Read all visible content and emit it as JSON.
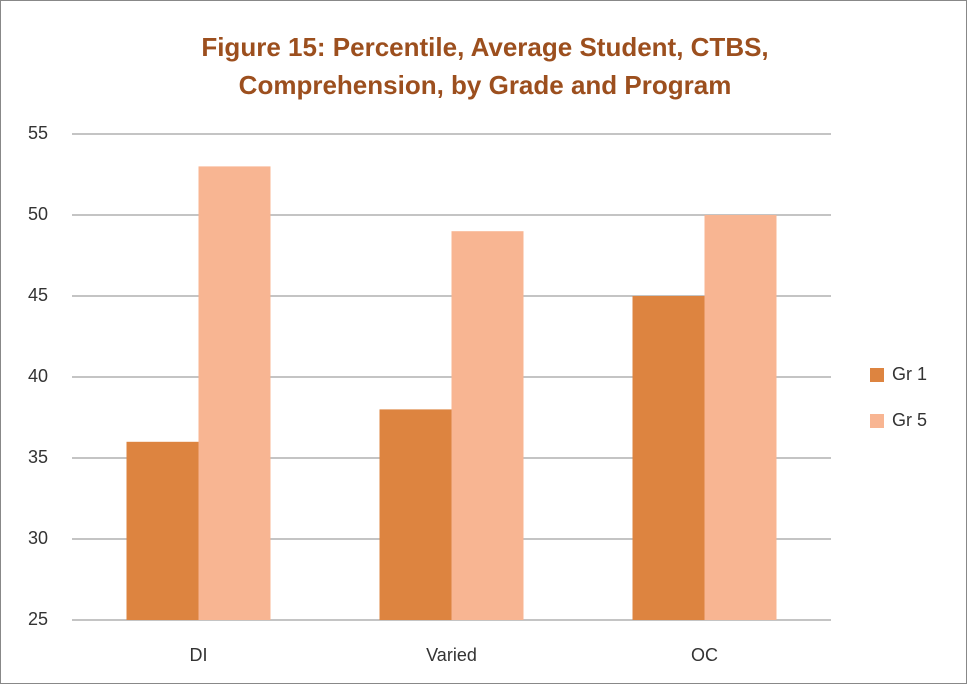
{
  "chart_data": {
    "type": "bar",
    "title": "Figure 15: Percentile, Average Student, CTBS, Comprehension, by Grade and Program",
    "categories": [
      "DI",
      "Varied",
      "OC"
    ],
    "series": [
      {
        "name": "Gr 1",
        "color": "#dd8440",
        "values": [
          36,
          38,
          45
        ]
      },
      {
        "name": "Gr 5",
        "color": "#f8b592",
        "values": [
          53,
          49,
          50
        ]
      }
    ],
    "ylim": [
      25,
      55
    ],
    "yticks": [
      25,
      30,
      35,
      40,
      45,
      50,
      55
    ],
    "grid": true,
    "legend": "right"
  }
}
